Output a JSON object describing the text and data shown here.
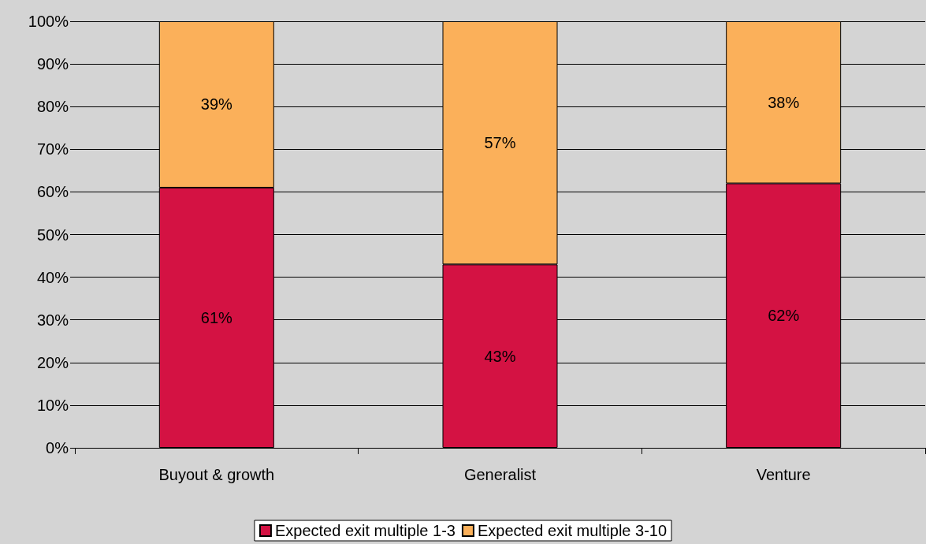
{
  "chart_data": {
    "type": "bar",
    "stacked": true,
    "categories": [
      "Buyout & growth",
      "Generalist",
      "Venture"
    ],
    "series": [
      {
        "name": "Expected exit multiple 1-3",
        "color": "#d41243",
        "values": [
          61,
          43,
          62
        ],
        "value_labels": [
          "61%",
          "43%",
          "62%"
        ]
      },
      {
        "name": "Expected exit multiple 3-10",
        "color": "#fbb05a",
        "values": [
          39,
          57,
          38
        ],
        "value_labels": [
          "39%",
          "57%",
          "38%"
        ]
      }
    ],
    "ylim": [
      0,
      100
    ],
    "yticks": [
      {
        "value": 0,
        "label": "0%"
      },
      {
        "value": 10,
        "label": "10%"
      },
      {
        "value": 20,
        "label": "20%"
      },
      {
        "value": 30,
        "label": "30%"
      },
      {
        "value": 40,
        "label": "40%"
      },
      {
        "value": 50,
        "label": "50%"
      },
      {
        "value": 60,
        "label": "60%"
      },
      {
        "value": 70,
        "label": "70%"
      },
      {
        "value": 80,
        "label": "80%"
      },
      {
        "value": 90,
        "label": "90%"
      },
      {
        "value": 100,
        "label": "100%"
      }
    ],
    "grid": "y",
    "legend": "bottom"
  }
}
